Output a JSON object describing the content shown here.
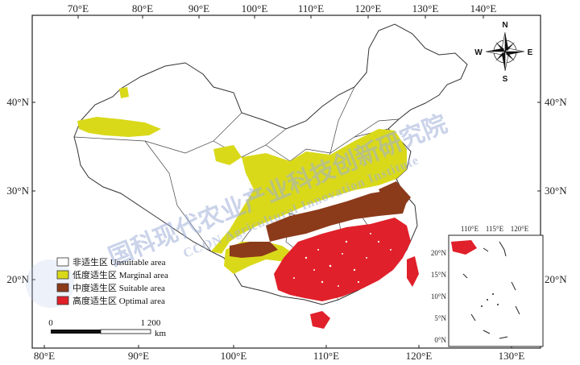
{
  "map": {
    "top_lon_labels": [
      "70°E",
      "80°E",
      "90°E",
      "100°E",
      "110°E",
      "120°E",
      "130°E",
      "140°E"
    ],
    "bottom_lon_labels": [
      "80°E",
      "90°E",
      "100°E",
      "110°E",
      "120°E",
      "130°E"
    ],
    "left_lat_labels": [
      "40°N",
      "30°N",
      "20°N"
    ],
    "right_lat_labels": [
      "40°N",
      "30°N",
      "20°N"
    ],
    "inset_top_labels": [
      "110°E",
      "115°E",
      "120°E"
    ],
    "inset_lat_labels": [
      "20°N",
      "15°N",
      "10°N",
      "5°N",
      "0°N"
    ]
  },
  "legend": {
    "items": [
      {
        "label": "非适生区 Unsuitable area",
        "color": "#ffffff"
      },
      {
        "label": "低度适生区 Marginal area",
        "color": "#d9d91a"
      },
      {
        "label": "中度适生区 Suitable area",
        "color": "#8b3a1a"
      },
      {
        "label": "高度适生区 Optimal area",
        "color": "#e0202a"
      }
    ]
  },
  "scale": {
    "start": "0",
    "end": "1 200",
    "unit": "km"
  },
  "compass": {
    "n": "N",
    "s": "S",
    "e": "E",
    "w": "W"
  },
  "watermark": {
    "cn": "国科现代农业产业科技创新研究院",
    "en": "CCON Agricultural Innovation Institute"
  }
}
